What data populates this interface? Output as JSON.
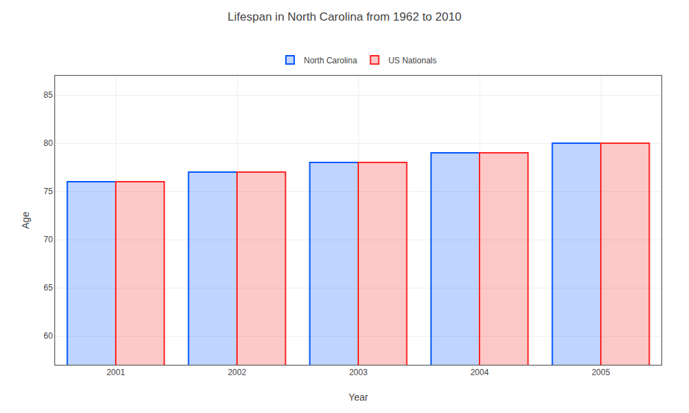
{
  "chart_data": {
    "type": "bar",
    "title": "Lifespan in North Carolina from 1962 to 2010",
    "xlabel": "Year",
    "ylabel": "Age",
    "categories": [
      "2001",
      "2002",
      "2003",
      "2004",
      "2005"
    ],
    "series": [
      {
        "name": "North Carolina",
        "color": "#0055ff",
        "values": [
          76,
          77,
          78,
          79,
          80
        ]
      },
      {
        "name": "US Nationals",
        "color": "#ff2222",
        "values": [
          76,
          77,
          78,
          79,
          80
        ]
      }
    ],
    "ylim": [
      57,
      87
    ],
    "yticks": [
      60,
      65,
      70,
      75,
      80,
      85
    ],
    "grid": true,
    "legend": "top"
  }
}
